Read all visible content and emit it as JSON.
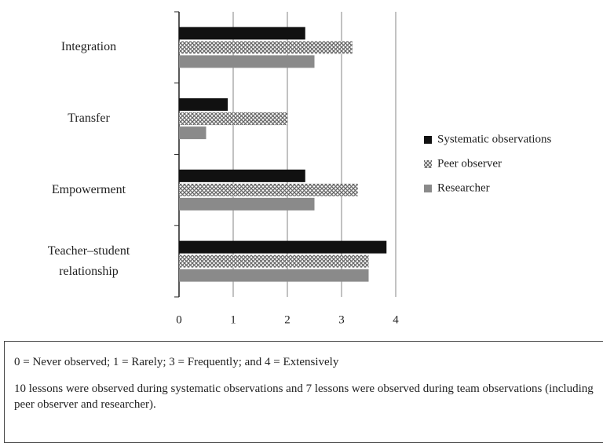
{
  "chart_data": {
    "type": "barh",
    "categories": [
      "Integration",
      "Transfer",
      "Empowerment",
      "Teacher–student relationship"
    ],
    "series": [
      {
        "name": "Systematic observations",
        "color": "#111111",
        "values": [
          2.33,
          0.9,
          2.33,
          3.83
        ]
      },
      {
        "name": "Peer observer",
        "color": "pattern",
        "values": [
          3.2,
          2.0,
          3.3,
          3.5
        ]
      },
      {
        "name": "Researcher",
        "color": "#8a8a8a",
        "values": [
          2.5,
          0.5,
          2.5,
          3.5
        ]
      }
    ],
    "xlim": [
      0,
      4
    ],
    "xticks": [
      0,
      1,
      2,
      3,
      4
    ],
    "grid": true,
    "legend": "right"
  },
  "notes": [
    "0 = Never observed; 1 = Rarely; 3 = Frequently; and 4 = Extensively",
    "10 lessons were observed during systematic observations and 7 lessons were observed during team observations (including peer observer and researcher)."
  ]
}
